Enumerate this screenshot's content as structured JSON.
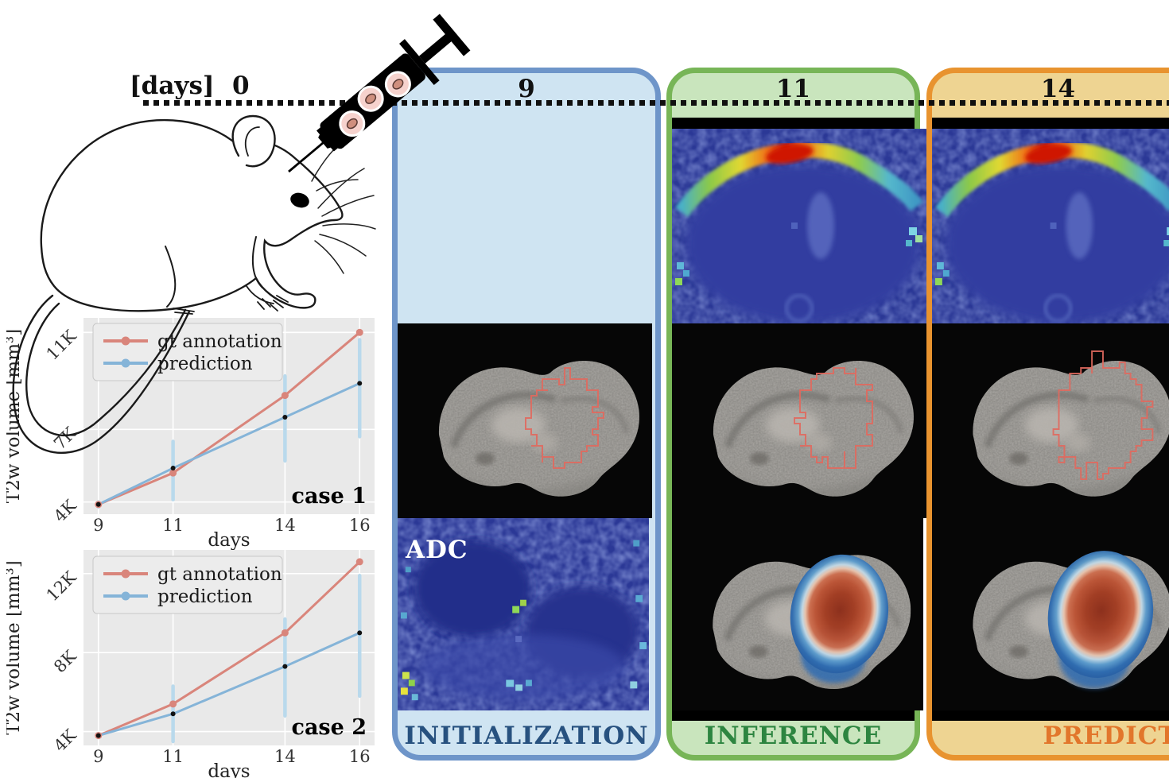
{
  "timeline": {
    "unit_label": "[days]",
    "start_value": "0"
  },
  "columns": [
    {
      "day": "9",
      "stage_label": "INITIALIZATION",
      "fill_color": "#cfe4f2",
      "border_color": "#6e95c9",
      "stage_text_color": "#27517f",
      "image_caption": "ADC"
    },
    {
      "day": "11",
      "stage_label": "INFERENCE",
      "fill_color": "#c9e5bd",
      "border_color": "#77b557",
      "stage_text_color": "#2d8540"
    },
    {
      "day": "14",
      "stage_label": "PREDICTION",
      "fill_color": "#eed492",
      "border_color": "#e8932f",
      "stage_text_color": "#e2762b"
    }
  ],
  "chart_data": [
    {
      "type": "line",
      "title": "case 1",
      "xlabel": "days",
      "ylabel": "T2w volume [mm³]",
      "x": [
        9,
        11,
        14,
        16
      ],
      "xticks": [
        "9",
        "11",
        "14",
        "16"
      ],
      "yticks": [
        {
          "label": "4K",
          "value": 4000
        },
        {
          "label": "7K",
          "value": 7000
        },
        {
          "label": "11K",
          "value": 11000
        }
      ],
      "xlim": [
        8.6,
        16.4
      ],
      "ylim": [
        3500,
        11600
      ],
      "background": "#e9e9e9",
      "grid": true,
      "legend_position": "upper left",
      "series": [
        {
          "name": "gt annotation",
          "color": "#d9857b",
          "values": [
            3900,
            5200,
            8400,
            11000
          ]
        },
        {
          "name": "prediction",
          "color": "#85b4d8",
          "marker_color": "#111111",
          "error_color": "#b9d9ec",
          "values": [
            3900,
            5400,
            7500,
            8900
          ],
          "error_low": [
            3800,
            4100,
            5700,
            6700
          ],
          "error_high": [
            4000,
            6500,
            9200,
            10700
          ]
        }
      ]
    },
    {
      "type": "line",
      "title": "case 2",
      "xlabel": "days",
      "ylabel": "T2w volume [mm³]",
      "x": [
        9,
        11,
        14,
        16
      ],
      "xticks": [
        "9",
        "11",
        "14",
        "16"
      ],
      "yticks": [
        {
          "label": "4K",
          "value": 4000
        },
        {
          "label": "8K",
          "value": 8000
        },
        {
          "label": "12K",
          "value": 12000
        }
      ],
      "xlim": [
        8.6,
        16.4
      ],
      "ylim": [
        3300,
        13200
      ],
      "background": "#e9e9e9",
      "grid": true,
      "legend_position": "upper left",
      "series": [
        {
          "name": "gt annotation",
          "color": "#d9857b",
          "values": [
            3800,
            5400,
            9000,
            12600
          ]
        },
        {
          "name": "prediction",
          "color": "#85b4d8",
          "marker_color": "#111111",
          "error_color": "#b9d9ec",
          "values": [
            3800,
            4900,
            7300,
            9000
          ],
          "error_low": [
            3700,
            3500,
            4800,
            5800
          ],
          "error_high": [
            3900,
            6300,
            9700,
            11900
          ]
        }
      ]
    }
  ]
}
